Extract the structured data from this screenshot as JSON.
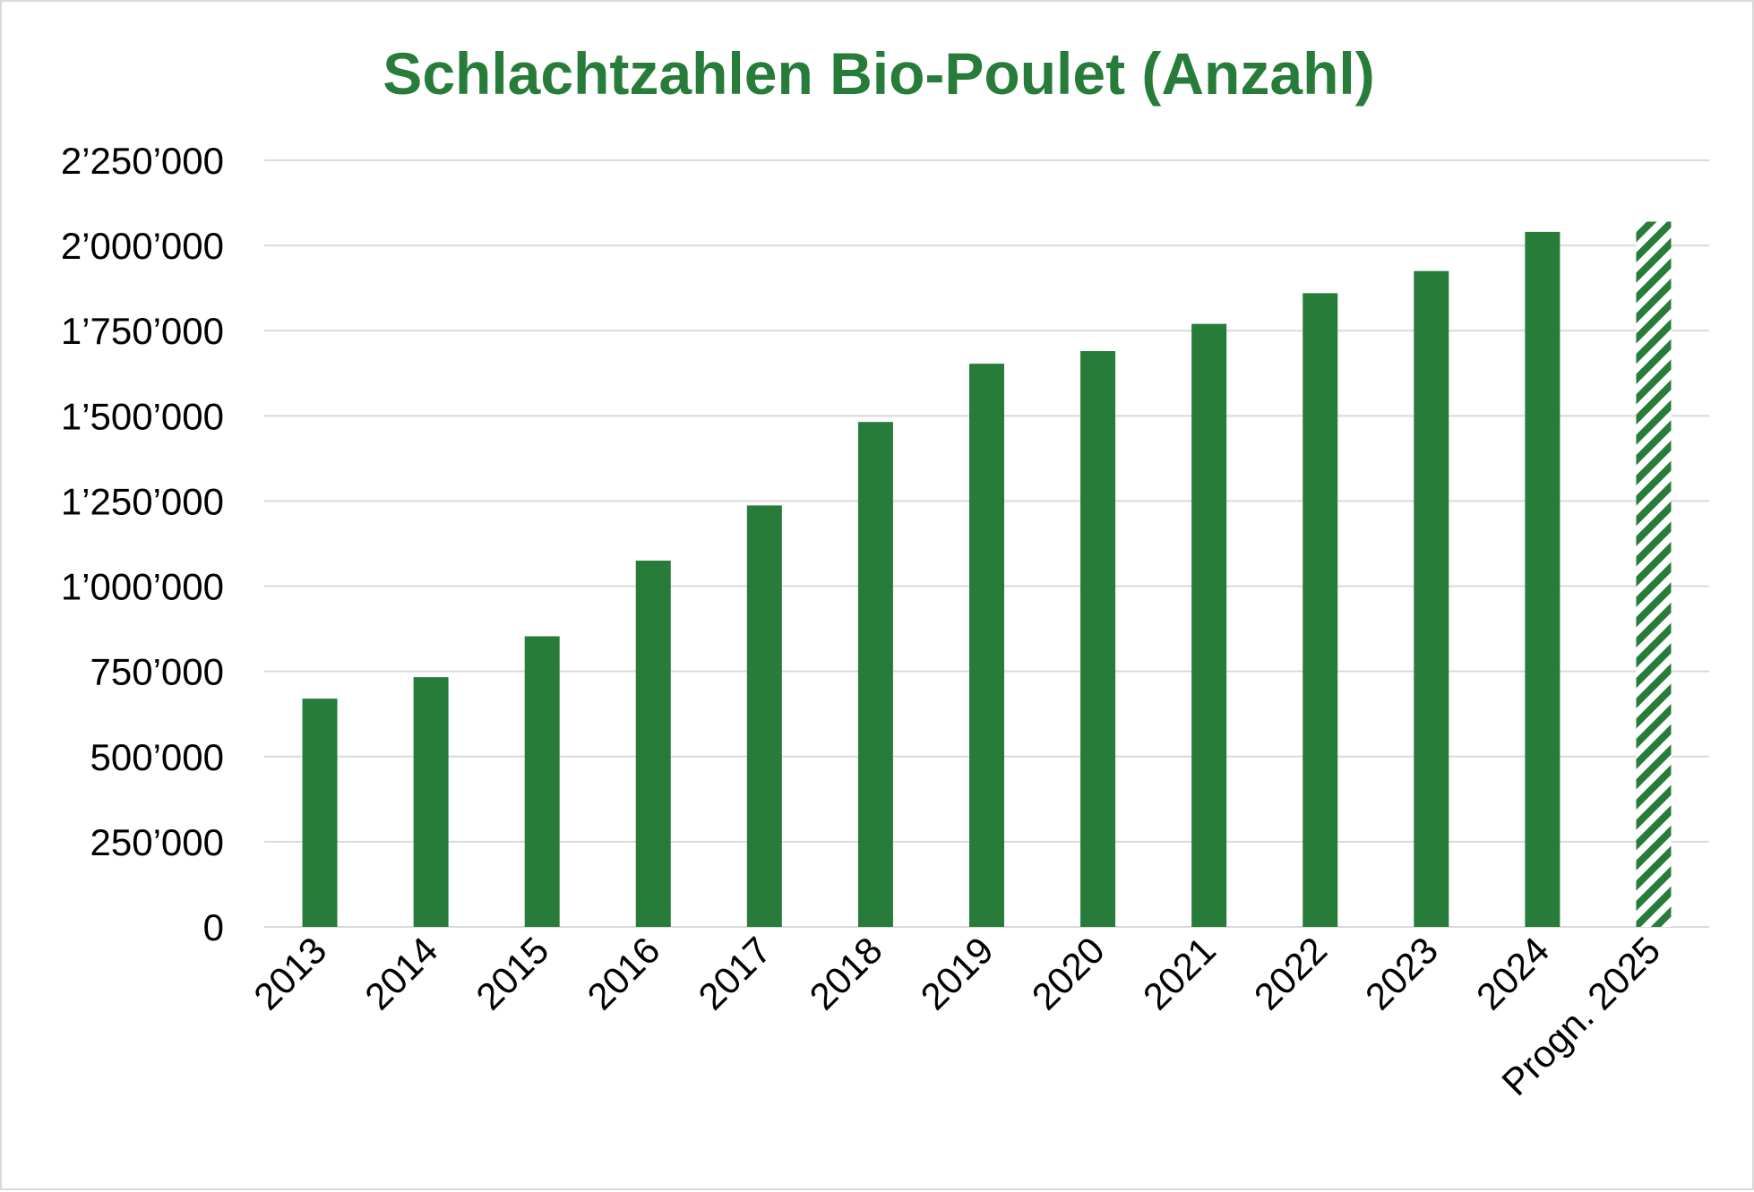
{
  "chart_data": {
    "type": "bar",
    "title": "Schlachtzahlen Bio-Poulet (Anzahl)",
    "xlabel": "",
    "ylabel": "",
    "categories": [
      "2013",
      "2014",
      "2015",
      "2016",
      "2017",
      "2018",
      "2019",
      "2020",
      "2021",
      "2022",
      "2023",
      "2024",
      "Progn. 2025"
    ],
    "values": [
      670000,
      733000,
      853000,
      1075000,
      1237000,
      1482000,
      1653000,
      1690000,
      1770000,
      1860000,
      1925000,
      2040000,
      2070000
    ],
    "forecast": [
      false,
      false,
      false,
      false,
      false,
      false,
      false,
      false,
      false,
      false,
      false,
      false,
      true
    ],
    "ylim": [
      0,
      2250000
    ],
    "yticks": [
      0,
      250000,
      500000,
      750000,
      1000000,
      1250000,
      1500000,
      1750000,
      2000000,
      2250000
    ],
    "ytick_labels": [
      "0",
      "250’000",
      "500’000",
      "750’000",
      "1’000’000",
      "1’250’000",
      "1’500’000",
      "1’750’000",
      "2’000’000",
      "2’250’000"
    ],
    "grid": true,
    "legend": "none",
    "colors": {
      "bar": "#277c3a",
      "title": "#277c3a",
      "grid": "#d9d9d9",
      "frame": "#d9d9d9"
    }
  }
}
